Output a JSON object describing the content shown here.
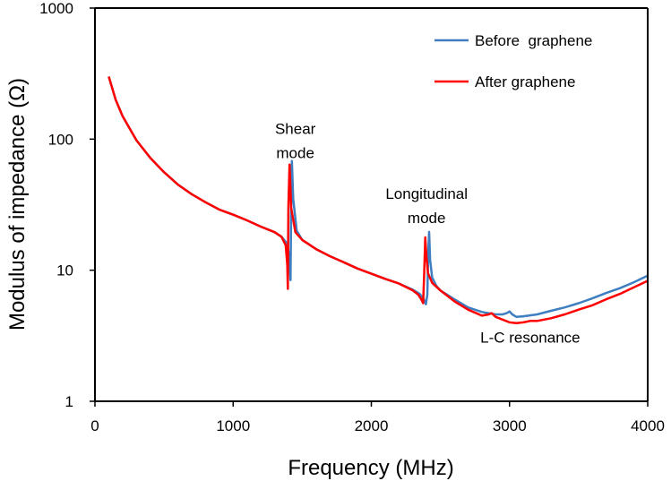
{
  "chart_data": {
    "type": "line",
    "title": "",
    "xlabel": "Frequency (MHz)",
    "ylabel": "Modulus of impedance (Ω)",
    "xlim": [
      0,
      4000
    ],
    "ylim": [
      1,
      1000
    ],
    "yscale": "log",
    "grid": false,
    "legend_position": "top-right",
    "x_ticks": [
      "0",
      "1000",
      "2000",
      "3000",
      "4000"
    ],
    "x_tick_values": [
      0,
      1000,
      2000,
      3000,
      4000
    ],
    "y_ticks": [
      "1",
      "10",
      "100",
      "1000"
    ],
    "y_tick_values": [
      1,
      10,
      100,
      1000
    ],
    "annotations": [
      {
        "lines": [
          "Shear",
          "mode"
        ],
        "x": 1450,
        "y": 110
      },
      {
        "lines": [
          "Longitudinal",
          "mode"
        ],
        "x": 2400,
        "y": 35
      },
      {
        "lines": [
          "L-C resonance"
        ],
        "x": 3150,
        "y": 2.8
      }
    ],
    "series": [
      {
        "name": "Before  graphene",
        "color": "#3f7fc1",
        "x": [
          100,
          150,
          200,
          300,
          400,
          500,
          600,
          700,
          800,
          900,
          1000,
          1100,
          1200,
          1300,
          1350,
          1390,
          1405,
          1415,
          1420,
          1425,
          1435,
          1460,
          1500,
          1600,
          1700,
          1800,
          1900,
          2000,
          2100,
          2200,
          2300,
          2350,
          2380,
          2395,
          2405,
          2412,
          2418,
          2425,
          2440,
          2470,
          2500,
          2600,
          2700,
          2800,
          2900,
          2950,
          2980,
          3000,
          3020,
          3050,
          3100,
          3200,
          3300,
          3400,
          3500,
          3600,
          3700,
          3800,
          3900,
          4000
        ],
        "y": [
          300,
          200,
          150,
          98,
          72,
          56,
          45,
          38,
          33,
          29,
          26.5,
          24,
          21.5,
          19.5,
          18,
          16,
          13,
          8.4,
          30,
          68,
          35,
          20,
          17,
          14.5,
          12.8,
          11.5,
          10.3,
          9.4,
          8.6,
          7.9,
          7.1,
          6.6,
          6.0,
          5.5,
          6.5,
          14,
          19.6,
          12,
          8.8,
          7.6,
          7.0,
          6.0,
          5.2,
          4.8,
          4.6,
          4.6,
          4.7,
          4.85,
          4.6,
          4.4,
          4.45,
          4.6,
          4.9,
          5.2,
          5.6,
          6.1,
          6.7,
          7.3,
          8.1,
          9.1
        ]
      },
      {
        "name": "After graphene",
        "color": "#ff0000",
        "x": [
          100,
          150,
          200,
          300,
          400,
          500,
          600,
          700,
          800,
          900,
          1000,
          1100,
          1200,
          1300,
          1350,
          1380,
          1392,
          1396,
          1400,
          1408,
          1420,
          1450,
          1500,
          1600,
          1700,
          1800,
          1900,
          2000,
          2100,
          2200,
          2300,
          2340,
          2365,
          2375,
          2382,
          2390,
          2398,
          2410,
          2440,
          2500,
          2600,
          2700,
          2800,
          2850,
          2870,
          2900,
          2950,
          3000,
          3050,
          3100,
          3150,
          3200,
          3300,
          3400,
          3500,
          3600,
          3700,
          3800,
          3900,
          4000
        ],
        "y": [
          300,
          200,
          150,
          98,
          72,
          56,
          45,
          38,
          33,
          29,
          26.5,
          24,
          21.5,
          19.5,
          18,
          15.5,
          11,
          7.2,
          30,
          64,
          30,
          19.5,
          17,
          14.5,
          12.8,
          11.5,
          10.3,
          9.4,
          8.6,
          7.9,
          7.0,
          6.5,
          5.9,
          5.6,
          9,
          17.8,
          13,
          9.5,
          8.0,
          7.0,
          5.8,
          5.0,
          4.5,
          4.6,
          4.7,
          4.4,
          4.2,
          4.0,
          3.95,
          4.0,
          4.1,
          4.1,
          4.3,
          4.6,
          5.0,
          5.4,
          6.0,
          6.6,
          7.4,
          8.3
        ]
      }
    ]
  }
}
